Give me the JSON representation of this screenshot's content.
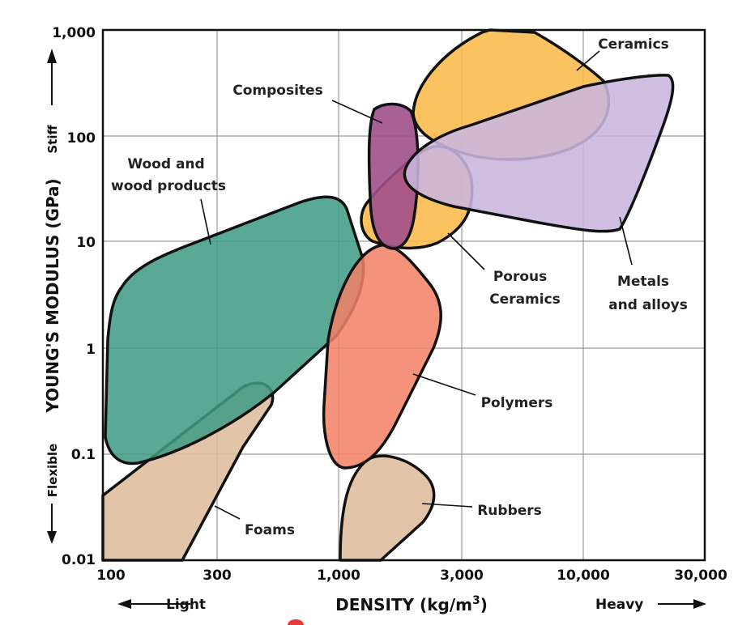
{
  "chart_data": {
    "type": "area",
    "xlabel": "DENSITY (kg/m3)",
    "ylabel": "YOUNG'S MODULUS (GPa)",
    "xscale": "log",
    "yscale": "log",
    "xlim": [
      100,
      30000
    ],
    "ylim": [
      0.01,
      1000
    ],
    "grid": true,
    "x_ticks": [
      "100",
      "300",
      "1,000",
      "3,000",
      "10,000",
      "30,000"
    ],
    "y_ticks": [
      "1,000",
      "100",
      "10",
      "1",
      "0.1",
      "0.01"
    ],
    "x_hints": {
      "left": "Light",
      "right": "Heavy"
    },
    "y_hints": {
      "top": "Stiff",
      "bottom": "Flexible"
    },
    "regions": [
      {
        "name": "Wood and wood products",
        "color": "#3f9b85",
        "density_range": [
          100,
          1400
        ],
        "modulus_range": [
          0.08,
          25
        ]
      },
      {
        "name": "Foams",
        "color": "#ddbb9a",
        "density_range": [
          100,
          510
        ],
        "modulus_range": [
          0.01,
          0.5
        ]
      },
      {
        "name": "Polymers",
        "color": "#f28066",
        "density_range": [
          800,
          2400
        ],
        "modulus_range": [
          0.08,
          10
        ]
      },
      {
        "name": "Rubbers",
        "color": "#ddbb9a",
        "density_range": [
          1000,
          2600
        ],
        "modulus_range": [
          0.01,
          0.1
        ]
      },
      {
        "name": "Ceramics",
        "color": "#f9b946",
        "density_range": [
          2000,
          13000
        ],
        "modulus_range": [
          60,
          1000
        ]
      },
      {
        "name": "Porous Ceramics",
        "color": "#f9b946",
        "density_range": [
          1200,
          3000
        ],
        "modulus_range": [
          8,
          300
        ]
      },
      {
        "name": "Composites",
        "color": "#a04f8c",
        "density_range": [
          1400,
          2000
        ],
        "modulus_range": [
          8,
          200
        ]
      },
      {
        "name": "Metals and alloys",
        "color": "#c9b6df",
        "density_range": [
          1800,
          23000
        ],
        "modulus_range": [
          12,
          400
        ]
      }
    ]
  }
}
